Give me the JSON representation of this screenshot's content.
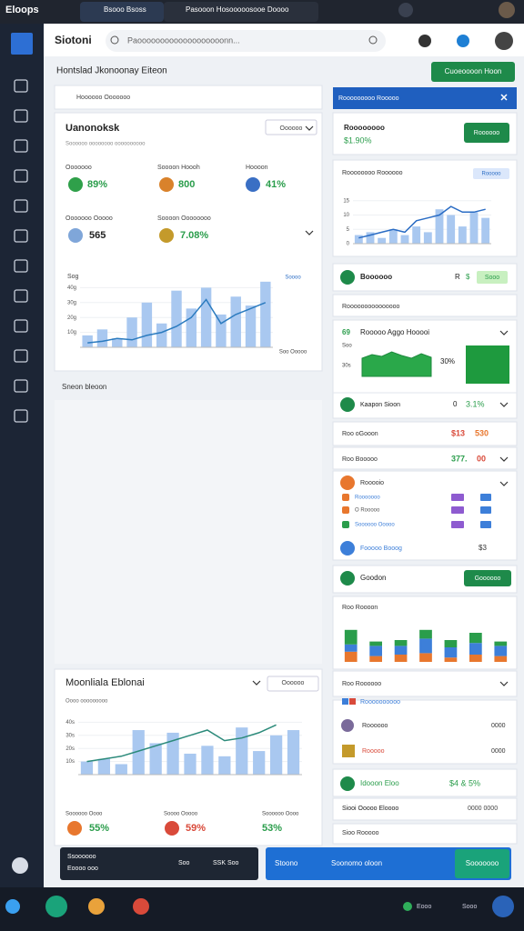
{
  "browser": {
    "brand": "Eloops",
    "tabs": [
      "Bsooo Bsoss",
      "Pasooon Hosooooosooe Doooo"
    ]
  },
  "header": {
    "app": "Siotoni",
    "search": "Paooooooooooooooooooonn..."
  },
  "page": {
    "title": "Hontslad Jkonoonay Eiteon",
    "action": "Cuoeoooon Hoon"
  },
  "overview": {
    "filter": "Hoooooo Ooooooo",
    "title": "Uanonoksk",
    "subtitle": "Soooooo oooooooo oooooooooo",
    "select": "Oooooo",
    "stats": [
      {
        "label": "Ooooooo",
        "value": "89%"
      },
      {
        "label": "Soooon Hoooh",
        "value": "800"
      },
      {
        "label": "Hoooon",
        "value": "41%"
      },
      {
        "label": "Ooooooo Ooooo",
        "value": "565"
      },
      {
        "label": "Soooon Oooooooo",
        "value": "7.08%"
      }
    ],
    "chart": {
      "ylabel": "Sog",
      "legend": "Soooo",
      "caption": "Soo Ooooo",
      "ylim": [
        0,
        50
      ],
      "yticks": [
        {
          "value": 10,
          "label": "10g"
        },
        {
          "value": 20,
          "label": "20g"
        },
        {
          "value": 30,
          "label": "30g"
        },
        {
          "value": 40,
          "label": "40g"
        }
      ],
      "bar_color": "#a9c8f0",
      "line_color": "#2b7bbf",
      "bars": [
        8,
        12,
        6,
        20,
        30,
        16,
        38,
        26,
        40,
        22,
        34,
        28,
        44
      ],
      "line": [
        3,
        4,
        6,
        5,
        8,
        10,
        14,
        20,
        32,
        16,
        22,
        26,
        30
      ]
    }
  },
  "section": "Sneon bleoon",
  "second": {
    "title": "Moonliala Eblonai",
    "select": "Oooooo",
    "caption": "Oooo ooooooooo",
    "chart": {
      "ylim": [
        0,
        50
      ],
      "yticks": [
        {
          "value": 10,
          "label": "10s"
        },
        {
          "value": 20,
          "label": "20s"
        },
        {
          "value": 30,
          "label": "30s"
        },
        {
          "value": 40,
          "label": "40s"
        }
      ],
      "bar_color": "#a9c8f0",
      "line_color": "#2b8a7a",
      "bars": [
        10,
        12,
        8,
        34,
        24,
        32,
        16,
        22,
        14,
        36,
        18,
        30,
        34
      ],
      "line": [
        10,
        12,
        14,
        18,
        22,
        26,
        30,
        34,
        26,
        28,
        32,
        38,
        null
      ]
    },
    "stats": [
      {
        "label": "Soooooo Oooo",
        "value": "55%"
      },
      {
        "label": "Soooo Ooooo",
        "value": "59%"
      },
      {
        "label": "Soooooo Oooo",
        "value": "53%"
      }
    ]
  },
  "footer": {
    "line1": "Ssoooooo",
    "line2": "Eoooo ooo",
    "mid": "Soo",
    "right": "SSK Soo"
  },
  "actionbar": {
    "left": "Stoono",
    "main": "Soonomo oloon",
    "button": "Sooooooo"
  },
  "panel": {
    "header": "Rooooooooo Rooooo",
    "summary": {
      "title": "Roooooooo",
      "value": "$1.90%",
      "button": "Roooooo"
    },
    "trend": {
      "title": "Roooooooo Roooooo",
      "tag": "Rooooo",
      "ylim": [
        0,
        20
      ],
      "yticks": [
        0,
        5,
        10,
        15
      ],
      "bar_color": "#a9c8f0",
      "line_color": "#2a6cc4",
      "bars": [
        3,
        4,
        2,
        5,
        3,
        6,
        4,
        12,
        10,
        6,
        11,
        9
      ],
      "line": [
        2,
        3,
        4,
        5,
        4,
        8,
        9,
        10,
        13,
        11,
        11,
        12
      ]
    },
    "row1": {
      "title": "Boooooo",
      "a": "R",
      "b": "$",
      "tag": "Sooo"
    },
    "row2": "Rooooooooooooooo",
    "apps": {
      "badge": "69",
      "title": "Rooooo Aggo Hooooi",
      "labels": [
        "Soo",
        "30s"
      ],
      "value": "30%",
      "ylim": [
        0,
        40
      ],
      "area": [
        20,
        24,
        22,
        27,
        23,
        20,
        25,
        21
      ]
    },
    "row3": {
      "title": "Kaapon Sioon",
      "a": "0",
      "b": "3.1%"
    },
    "row4": {
      "title": "Roo oGooon",
      "a": "$13",
      "b": "530"
    },
    "row5": {
      "title": "Roo Booooo",
      "a": "377.",
      "b": "00"
    },
    "list": {
      "title": "Rooooio",
      "items": [
        "Rooooooo",
        "O Rooooo",
        "Soooooo Ooooo"
      ],
      "footer": "Fooooo Booog",
      "value": "$3"
    },
    "row6": {
      "title": "Goodon",
      "button": "Goooooo"
    },
    "stack": {
      "title": "Roo Roooon",
      "ylim": [
        0,
        60
      ],
      "series": [
        {
          "color": "#e8772e",
          "values": [
            14,
            8,
            10,
            12,
            6,
            10,
            8
          ]
        },
        {
          "color": "#3d7fd9",
          "values": [
            10,
            14,
            12,
            20,
            14,
            16,
            14
          ]
        },
        {
          "color": "#2a9d4b",
          "values": [
            20,
            6,
            8,
            12,
            10,
            14,
            6
          ]
        }
      ]
    },
    "row7": "Roo Roooooo",
    "people": {
      "title": "Roooooooooo",
      "items": [
        {
          "name": "Roooooo",
          "value": "0000"
        },
        {
          "name": "Rooooo",
          "value": "0000"
        }
      ]
    },
    "row8": {
      "title": "Idooon Eloo",
      "value": "$4 & 5%"
    },
    "row9": {
      "title": "Siooi Ooooo Eloooo",
      "value": "0000 0000"
    },
    "row10": "Sioo Rooooo"
  },
  "taskbar": {
    "items": [
      "Eooo",
      "Sooo"
    ]
  }
}
